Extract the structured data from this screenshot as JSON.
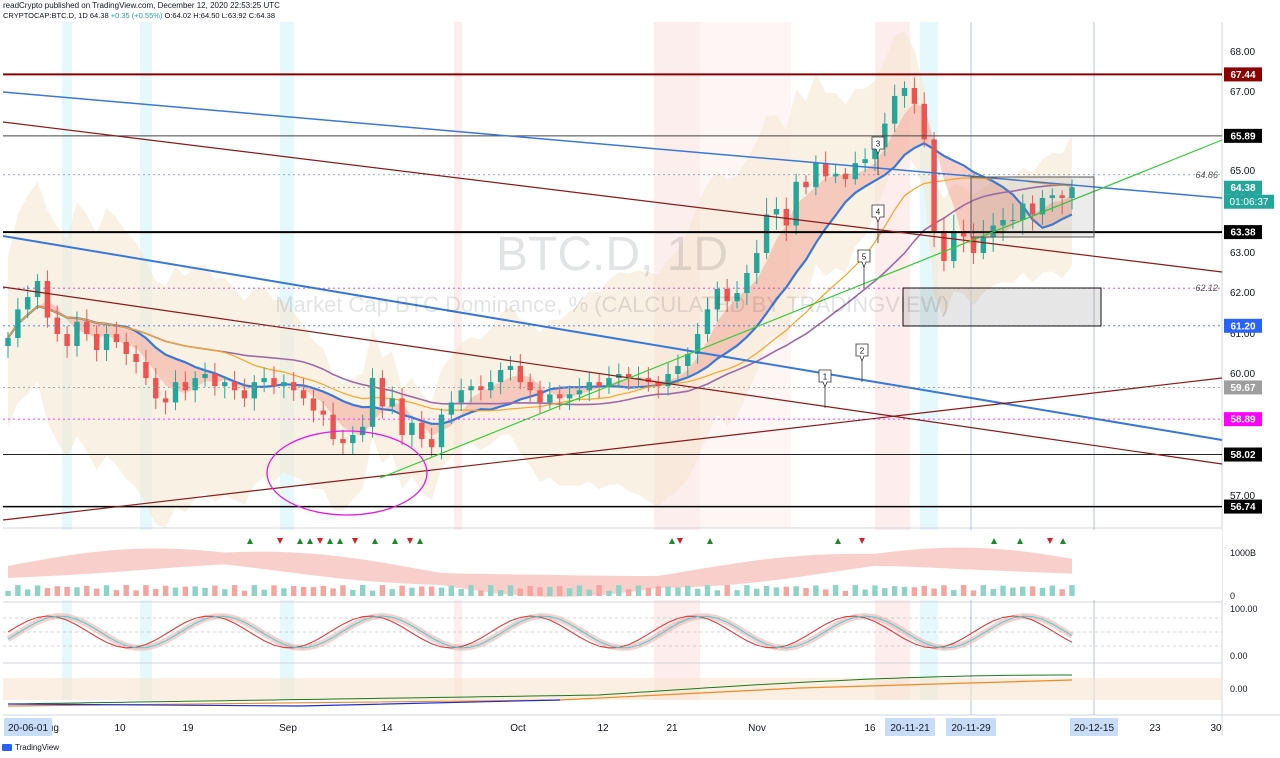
{
  "header": {
    "publisher": "readCrypto published on TradingView.com, December 12, 2020 22:53:25 UTC",
    "symbol": "CRYPTOCAP:BTC.D, 1D",
    "quote": "64.38",
    "change": "+0.35 (+0.55%)",
    "ohlc": "O:64.02 H:64.50 L:63.92 C:64.38"
  },
  "watermark": {
    "symbol": "BTC.D, 1D",
    "desc": "Market Cap BTC Dominance, % (CALCULATED BY TRADINGVIEW)"
  },
  "footer": {
    "brand": "TradingView"
  },
  "colors": {
    "up": "#26a69a",
    "down": "#ef5350",
    "support": "#000000",
    "resistance": "#8b0000",
    "trend_blue": "#3a78d8",
    "trend_green": "#33cc33",
    "circle": "#e21ce2"
  },
  "chart_data": {
    "type": "candlestick",
    "title": "BTC.D, 1D",
    "ylabel": "",
    "ylim": [
      56.5,
      68.5
    ],
    "y_ticks": [
      "68.00",
      "67.00",
      "65.00",
      "64.00",
      "63.00",
      "62.00",
      "61.00",
      "60.00",
      "57.00"
    ],
    "x_ticks": [
      "Aug",
      "10",
      "19",
      "Sep",
      "14",
      "Oct",
      "12",
      "21",
      "Nov",
      "16",
      "23",
      "30"
    ],
    "x_highlights": [
      "20-06-01",
      "20-11-21",
      "20-11-29",
      "20-12-15"
    ],
    "price_labels": [
      {
        "value": 67.44,
        "text": "67.44",
        "color": "#8b0000"
      },
      {
        "value": 65.89,
        "text": "65.89",
        "color": "#000000"
      },
      {
        "value": 64.38,
        "text": "64.38",
        "color": "#26a69a"
      },
      {
        "value": 63.38,
        "text": "63.38",
        "color": "#000000"
      },
      {
        "value": 61.2,
        "text": "61.20",
        "color": "#2962ff"
      },
      {
        "value": 59.67,
        "text": "59.67",
        "color": "#9e9e9e"
      },
      {
        "value": 58.89,
        "text": "58.89",
        "color": "#ff00ff"
      },
      {
        "value": 58.02,
        "text": "58.02",
        "color": "#000000"
      },
      {
        "value": 56.74,
        "text": "56.74",
        "color": "#000000"
      }
    ],
    "countdown": "01:06:37",
    "fib_labels": [
      {
        "value": 64.86,
        "text": "64.86"
      },
      {
        "value": 62.12,
        "text": "62.12"
      }
    ],
    "annotations": [
      "1",
      "2",
      "3",
      "4",
      "5"
    ],
    "closes": [
      60.9,
      61.6,
      61.9,
      62.3,
      61.4,
      61.0,
      60.7,
      61.3,
      61.0,
      60.6,
      61.0,
      60.8,
      60.5,
      60.3,
      59.9,
      59.4,
      59.3,
      59.8,
      59.6,
      59.9,
      60.0,
      59.7,
      59.8,
      59.6,
      59.4,
      59.8,
      59.9,
      59.7,
      59.8,
      59.6,
      59.4,
      59.1,
      59.0,
      58.4,
      58.3,
      58.5,
      58.7,
      59.9,
      59.2,
      59.4,
      58.5,
      58.8,
      58.4,
      58.2,
      59.0,
      59.3,
      59.6,
      59.7,
      59.6,
      59.8,
      60.1,
      60.2,
      59.8,
      59.6,
      59.3,
      59.5,
      59.4,
      59.5,
      59.6,
      59.8,
      59.7,
      59.9,
      60.0,
      59.9,
      59.9,
      59.8,
      59.7,
      60.0,
      60.2,
      60.5,
      61.0,
      61.6,
      62.1,
      61.8,
      62.0,
      62.5,
      63.0,
      63.7,
      63.8,
      63.5,
      64.6,
      64.4,
      65.2,
      64.8,
      64.9,
      64.7,
      65.2,
      65.3,
      65.6,
      66.2,
      66.9,
      67.1,
      66.7,
      65.8,
      63.4,
      62.8,
      63.4,
      63.3,
      63.0,
      63.3,
      63.5,
      63.6,
      63.6,
      63.9,
      63.7,
      64.0,
      64.1,
      64.0,
      64.4
    ],
    "volume_axis": [
      "1000B",
      "0"
    ],
    "osc1_axis": [
      "100.00",
      "0.00"
    ],
    "osc2_axis": [
      "0.00"
    ]
  }
}
